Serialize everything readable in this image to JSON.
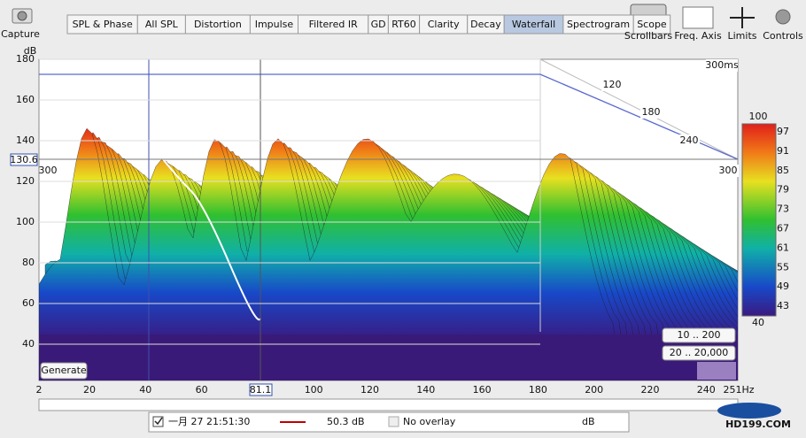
{
  "toolbar": {
    "capture": "Capture",
    "tabs": [
      "SPL & Phase",
      "All SPL",
      "Distortion",
      "Impulse",
      "Filtered IR",
      "GD",
      "RT60",
      "Clarity",
      "Decay",
      "Waterfall",
      "Spectrogram",
      "Scope"
    ],
    "right": [
      "Scrollbars",
      "Freq. Axis",
      "Limits",
      "Controls"
    ]
  },
  "graph": {
    "y_unit": "dB",
    "y_ticks": [
      "180",
      "160",
      "140",
      "120",
      "100",
      "80",
      "60",
      "40"
    ],
    "y_cursor": "130.6",
    "x_ticks": [
      "2",
      "20",
      "40",
      "60",
      "80",
      "100",
      "120",
      "140",
      "160",
      "180",
      "200",
      "220",
      "240"
    ],
    "x_end": "251Hz",
    "x_cursor": "81.1",
    "depth_labels": [
      "300ms",
      "120",
      "180",
      "240",
      "300"
    ],
    "depth_left": "300",
    "scale_top": "100",
    "scale_labels": [
      "97",
      "91",
      "85",
      "79",
      "73",
      "67",
      "61",
      "55",
      "49",
      "43"
    ],
    "scale_bottom": "40",
    "range_buttons": [
      "10 .. 200",
      "20 .. 20,000"
    ],
    "generate": "Generate"
  },
  "status": {
    "date": "一月 27 21:51:30",
    "level": "50.3 dB",
    "overlay": "No overlay",
    "unit": "dB"
  },
  "watermark": "HD199.COM"
}
